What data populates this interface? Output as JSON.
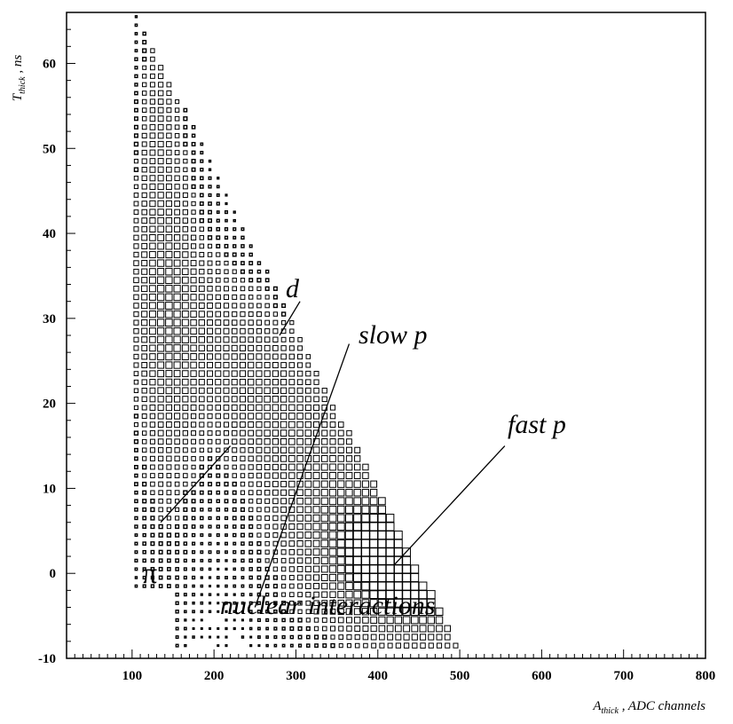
{
  "chart_data": {
    "type": "heatmap",
    "title": "",
    "xlabel": "A_thick , ADC channels",
    "xlabel_main": "A",
    "xlabel_sub": "thick",
    "xlabel_rest": " , ADC channels",
    "ylabel": "T_thick , ns",
    "ylabel_main": "T",
    "ylabel_sub": "thick",
    "ylabel_rest": " , ns",
    "xlim": [
      20,
      800
    ],
    "ylim": [
      -10,
      66
    ],
    "xticks": [
      "100",
      "200",
      "300",
      "400",
      "500",
      "600",
      "700",
      "800"
    ],
    "yticks": [
      "-10",
      "0",
      "10",
      "20",
      "30",
      "40",
      "50",
      "60"
    ],
    "grid": false,
    "bins": {
      "x_width": 10,
      "y_width": 1
    },
    "annotations": [
      {
        "name": "pi-label",
        "text": "π",
        "x": 120,
        "y": 0,
        "line": [
          [
            135,
            6
          ],
          [
            220,
            15
          ]
        ]
      },
      {
        "name": "d-label",
        "text": "d",
        "x": 318,
        "y": 32,
        "line": [
          [
            280,
            28
          ],
          [
            305,
            32
          ]
        ]
      },
      {
        "name": "slow-p-label",
        "text": "slow p",
        "x": 360,
        "y": 27,
        "line": [
          [
            250,
            -4
          ],
          [
            365,
            27
          ]
        ]
      },
      {
        "name": "fast-p-label",
        "text": "fast p",
        "x": 553,
        "y": 15,
        "line": [
          [
            420,
            1
          ],
          [
            555,
            15
          ]
        ]
      },
      {
        "name": "nuclear-interactions-label",
        "text": "nuclear interactions",
        "x": 240,
        "y": -8
      }
    ]
  }
}
